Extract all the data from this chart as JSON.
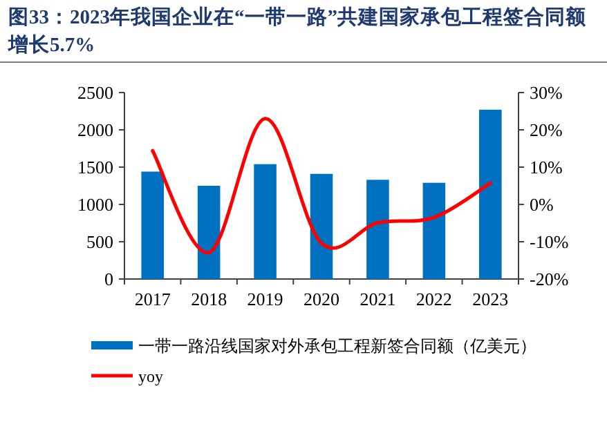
{
  "chart_data": {
    "type": "bar",
    "title": "图33：2023年我国企业在“一带一路”共建国家承包工程签合同额增长5.7%",
    "categories": [
      "2017",
      "2018",
      "2019",
      "2020",
      "2021",
      "2022",
      "2023"
    ],
    "series": [
      {
        "name": "一带一路沿线国家对外承包工程新签合同额（亿美元）",
        "color": "#0070c0",
        "values": [
          1440,
          1250,
          1540,
          1410,
          1330,
          1290,
          2270
        ]
      },
      {
        "name": "yoy",
        "type": "line",
        "axis": "y2",
        "color": "#ff0000",
        "values": [
          14.4,
          -12.9,
          23.0,
          -10.4,
          -4.9,
          -3.5,
          5.7
        ]
      }
    ],
    "ylim": [
      0,
      2500
    ],
    "yticks": [
      0,
      500,
      1000,
      1500,
      2000,
      2500
    ],
    "y2lim": [
      -20,
      30
    ],
    "y2ticks": [
      {
        "value": -20,
        "label": "-20%"
      },
      {
        "value": -10,
        "label": "-10%"
      },
      {
        "value": 0,
        "label": "0%"
      },
      {
        "value": 10,
        "label": "10%"
      },
      {
        "value": 20,
        "label": "20%"
      },
      {
        "value": 30,
        "label": "30%"
      }
    ],
    "legend": "bottom",
    "grid": false
  }
}
